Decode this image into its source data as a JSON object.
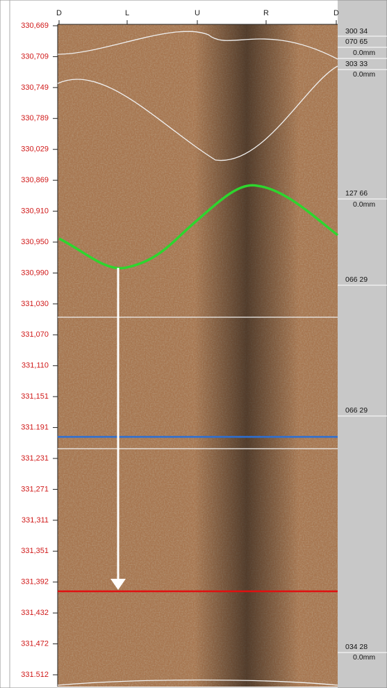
{
  "header": {
    "track_labels": [
      "D",
      "L",
      "U",
      "R",
      "D"
    ]
  },
  "depths": [
    "330,669",
    "330,709",
    "330,749",
    "330,789",
    "330,029",
    "330,869",
    "330,910",
    "330,950",
    "330,990",
    "331,030",
    "331,070",
    "331,110",
    "331,151",
    "331.191",
    "331,231",
    "331,271",
    "331,311",
    "331,351",
    "331,392",
    "331,432",
    "331,472",
    "331.512"
  ],
  "annotations": [
    "300 34",
    "070 65",
    "0.0mm",
    "303 33",
    "0.0mm",
    "127 66",
    "0.0mm",
    "066 29",
    "066 29",
    "034 28",
    "0.0mm"
  ]
}
